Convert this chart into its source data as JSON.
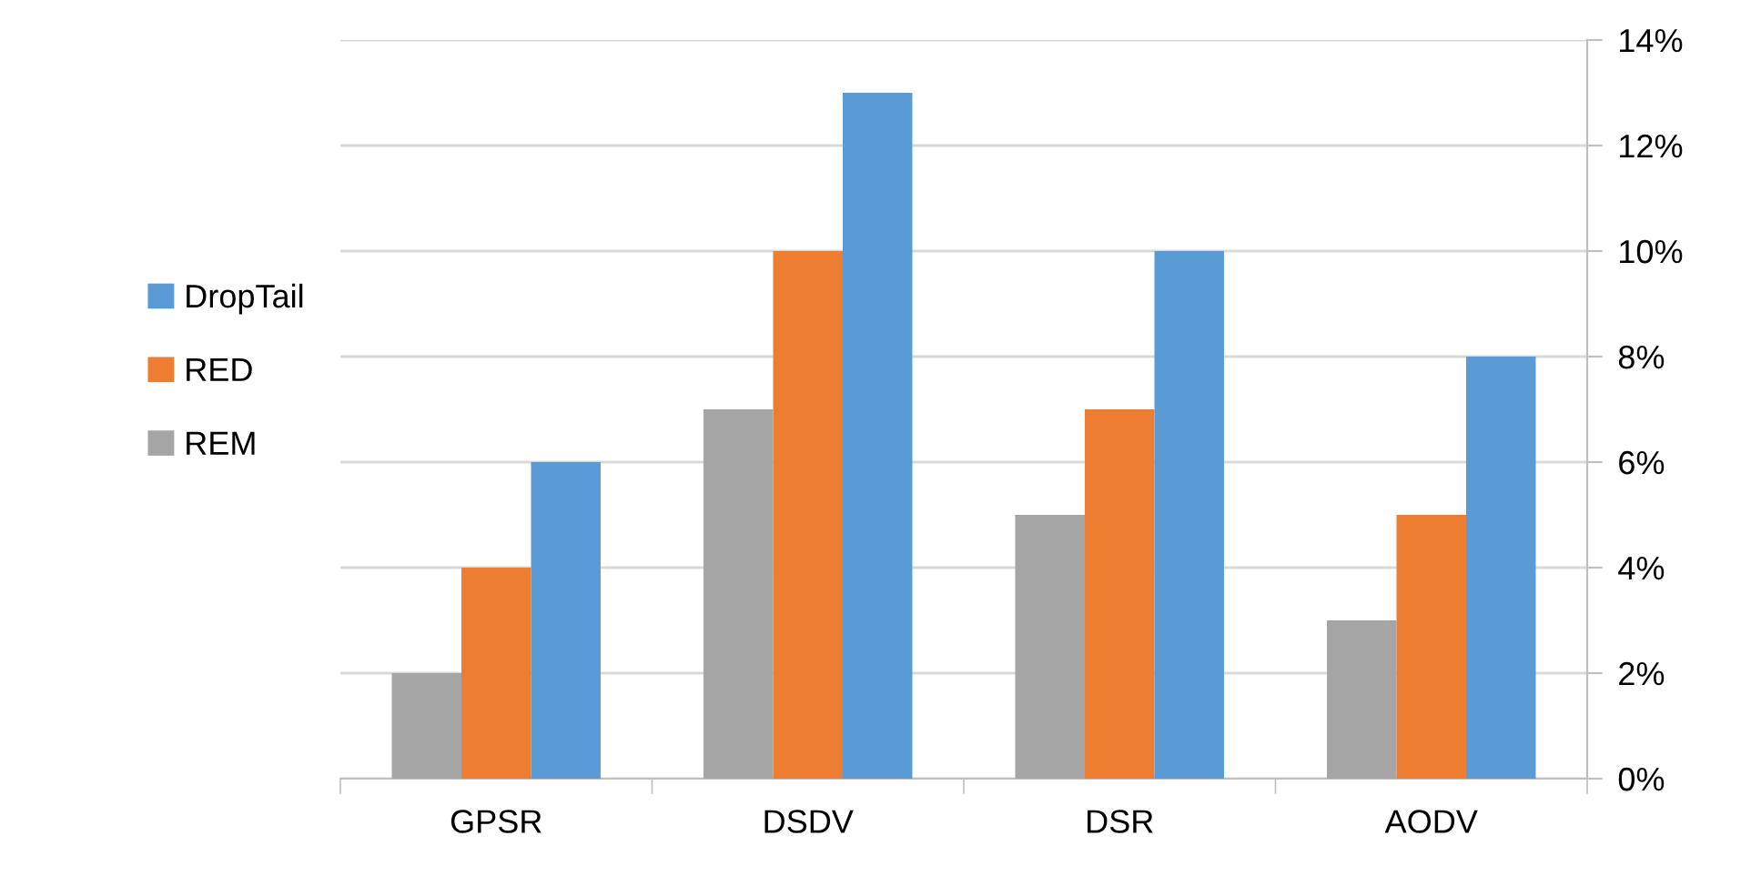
{
  "chart_data": {
    "type": "bar",
    "categories": [
      "GPSR",
      "DSDV",
      "DSR",
      "AODV"
    ],
    "series": [
      {
        "name": "REM",
        "color": "#a5a5a5",
        "values": [
          2,
          7,
          5,
          3
        ]
      },
      {
        "name": "RED",
        "color": "#ed7d31",
        "values": [
          4,
          10,
          7,
          5
        ]
      },
      {
        "name": "DropTail",
        "color": "#5b9bd5",
        "values": [
          6,
          13,
          10,
          8
        ]
      }
    ],
    "ylim": [
      0,
      14
    ],
    "yticks": [
      {
        "value": 0,
        "label": "0%"
      },
      {
        "value": 2,
        "label": "2%"
      },
      {
        "value": 4,
        "label": "4%"
      },
      {
        "value": 6,
        "label": "6%"
      },
      {
        "value": 8,
        "label": "8%"
      },
      {
        "value": 10,
        "label": "10%"
      },
      {
        "value": 12,
        "label": "12%"
      },
      {
        "value": 14,
        "label": "14%"
      }
    ],
    "grid": "y",
    "legend": "left"
  }
}
